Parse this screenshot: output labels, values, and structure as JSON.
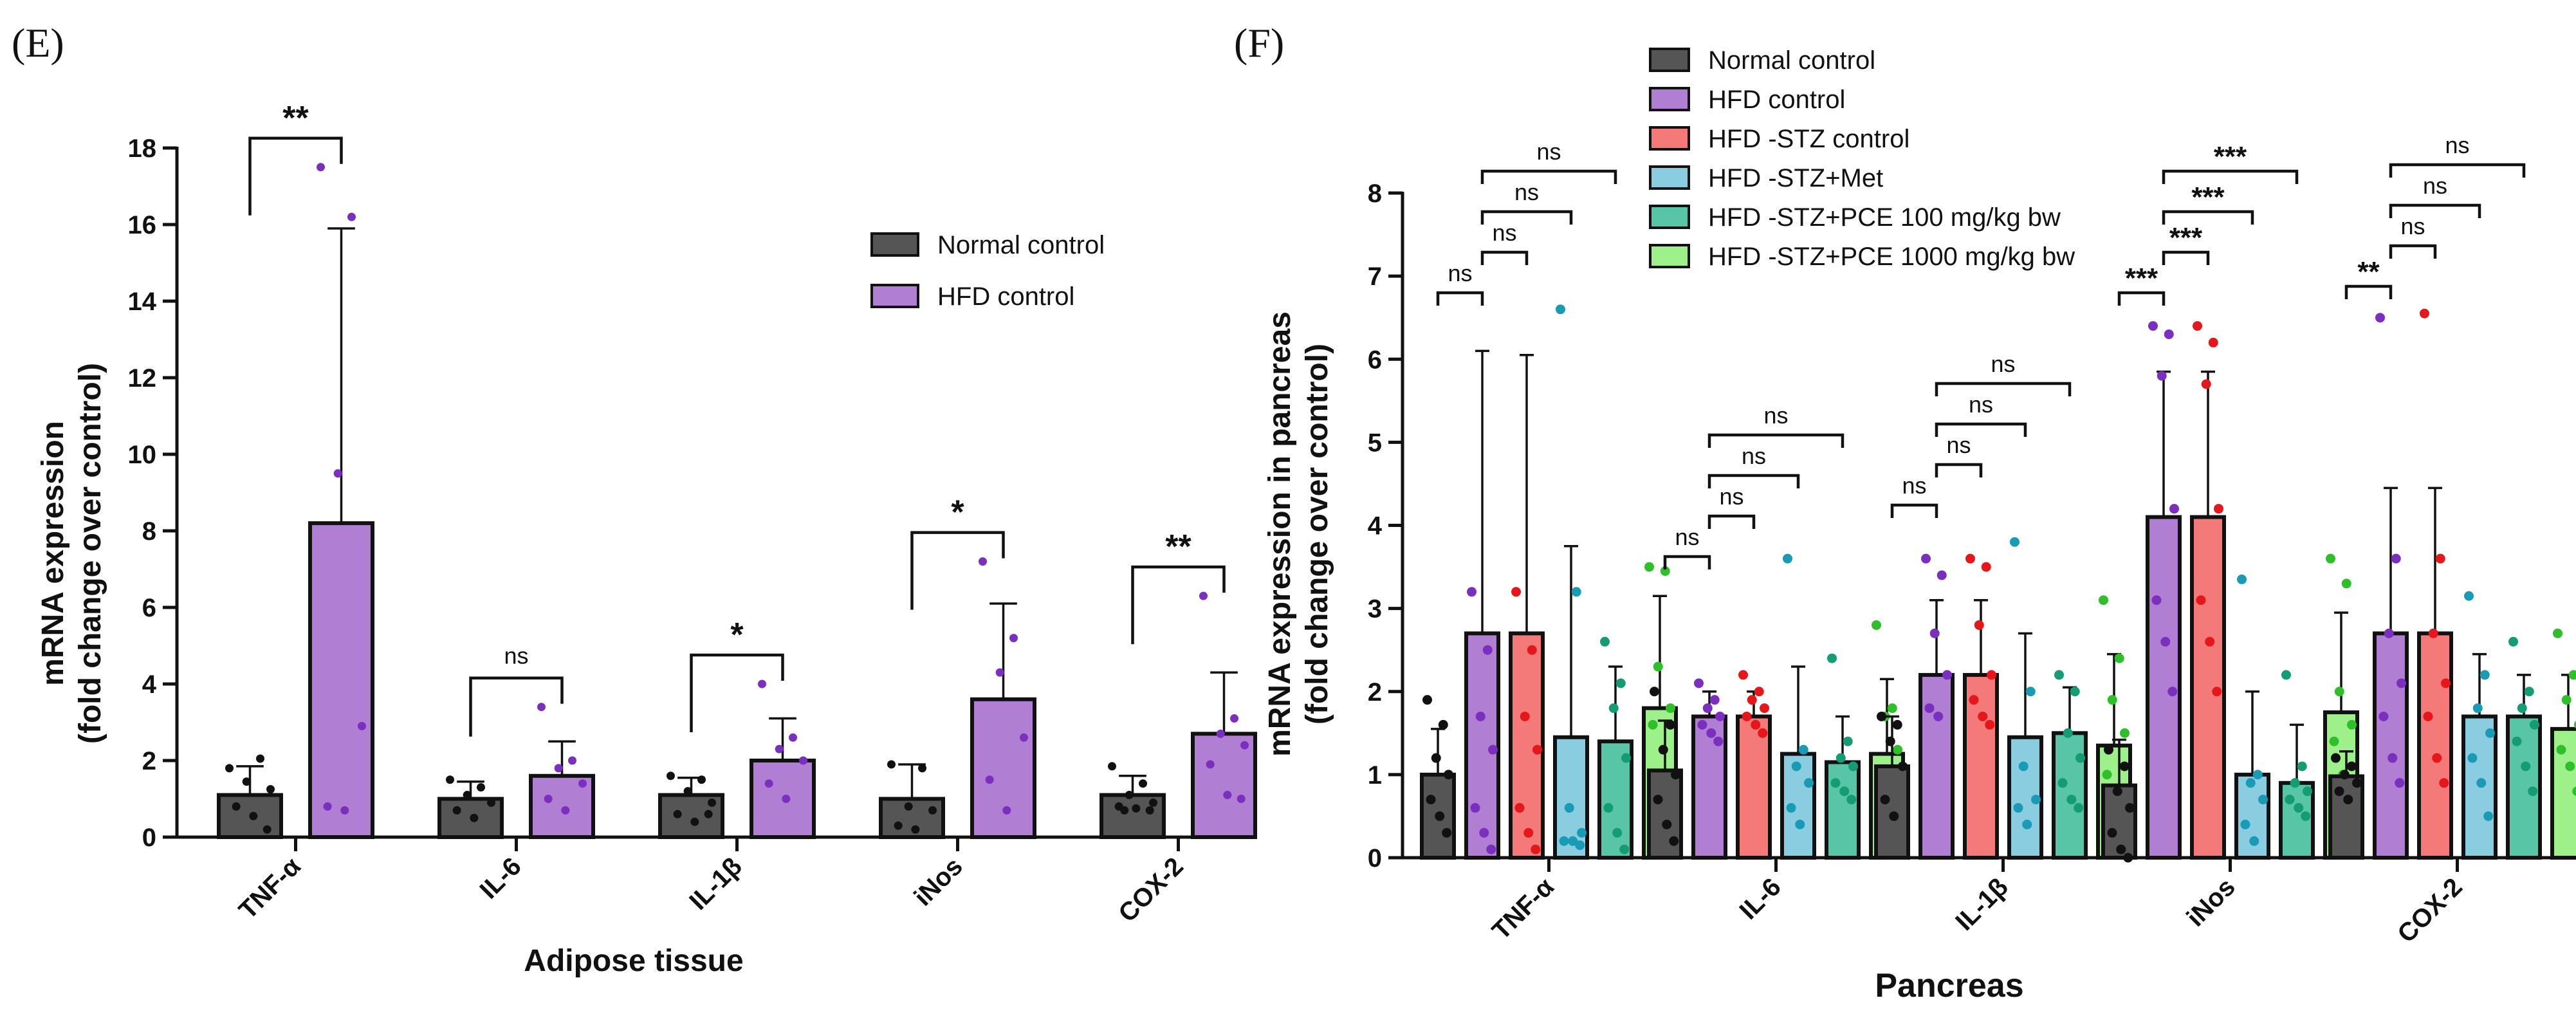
{
  "chart_data": [
    {
      "id": "E",
      "panel_label": "(E)",
      "type": "bar",
      "title": "",
      "xlabel": "Adipose tissue",
      "ylabel": [
        "mRNA expression",
        "(fold change over control)"
      ],
      "ylim": [
        0,
        18
      ],
      "yticks": [
        0,
        2,
        4,
        6,
        8,
        10,
        12,
        14,
        16,
        18
      ],
      "legend_position": "top-right",
      "categories": [
        "TNF-α",
        "IL-6",
        "IL-1β",
        "iNos",
        "COX-2"
      ],
      "series": [
        {
          "name": "Normal control",
          "color": "#555555",
          "values": [
            1.1,
            1.0,
            1.1,
            1.0,
            1.1
          ],
          "errors": [
            0.75,
            0.45,
            0.45,
            0.9,
            0.5
          ],
          "points": [
            [
              1.8,
              2.05,
              1.45,
              1.25,
              0.8,
              0.55,
              0.2
            ],
            [
              1.5,
              1.3,
              1.1,
              0.9,
              0.7,
              0.5
            ],
            [
              1.6,
              1.5,
              1.2,
              0.9,
              0.6,
              0.4,
              0.6
            ],
            [
              1.9,
              1.8,
              0.8,
              0.7,
              0.3,
              0.2
            ],
            [
              1.85,
              1.4,
              1.1,
              0.9,
              0.8,
              0.75,
              0.7,
              0.7
            ]
          ]
        },
        {
          "name": "HFD control",
          "color": "#b07fd4",
          "values": [
            8.2,
            1.6,
            2.0,
            3.6,
            2.7
          ],
          "errors": [
            7.7,
            0.9,
            1.1,
            2.5,
            1.6
          ],
          "points": [
            [
              17.5,
              16.2,
              9.5,
              2.9,
              0.8,
              0.7
            ],
            [
              3.4,
              2.0,
              1.8,
              1.4,
              1.0,
              0.7
            ],
            [
              4.0,
              2.6,
              2.3,
              2.0,
              1.4,
              1.0
            ],
            [
              7.2,
              5.2,
              4.3,
              2.6,
              1.5,
              0.7
            ],
            [
              6.3,
              3.1,
              2.7,
              2.4,
              1.9,
              1.1,
              1.0
            ]
          ]
        }
      ],
      "significance": [
        {
          "category": "TNF-α",
          "label": "**"
        },
        {
          "category": "IL-6",
          "label": "ns"
        },
        {
          "category": "IL-1β",
          "label": "*"
        },
        {
          "category": "iNos",
          "label": "*"
        },
        {
          "category": "COX-2",
          "label": "**"
        }
      ]
    },
    {
      "id": "F",
      "panel_label": "(F)",
      "type": "bar",
      "title": "",
      "xlabel": "Pancreas",
      "ylabel": [
        "mRNA expression in pancreas",
        "(fold change over control)"
      ],
      "ylim": [
        0,
        8
      ],
      "yticks": [
        0,
        1,
        2,
        3,
        4,
        5,
        6,
        7,
        8
      ],
      "legend_position": "top-center",
      "categories": [
        "TNF-α",
        "IL-6",
        "IL-1β",
        "iNos",
        "COX-2"
      ],
      "series": [
        {
          "name": "Normal control",
          "color": "#555555",
          "dot": "#111111",
          "values": [
            1.0,
            1.05,
            1.1,
            0.87,
            0.98
          ],
          "errors": [
            0.55,
            0.6,
            0.6,
            0.55,
            0.3
          ],
          "points": [
            [
              1.9,
              1.6,
              1.2,
              1.0,
              0.7,
              0.5,
              0.3
            ],
            [
              2.0,
              1.6,
              1.3,
              1.0,
              0.7,
              0.4,
              0.2
            ],
            [
              1.7,
              1.6,
              1.4,
              1.1,
              0.7,
              0.5
            ],
            [
              1.3,
              1.1,
              0.8,
              0.6,
              0.3,
              0.1,
              0.0
            ],
            [
              1.2,
              1.1,
              1.0,
              0.9,
              0.8,
              0.7
            ]
          ]
        },
        {
          "name": "HFD control",
          "color": "#b07fd4",
          "dot": "#7b2fbf",
          "values": [
            2.7,
            1.7,
            2.2,
            4.1,
            2.7
          ],
          "errors": [
            3.4,
            0.3,
            0.9,
            1.75,
            1.75
          ],
          "points": [
            [
              3.2,
              2.5,
              1.7,
              1.3,
              0.6,
              0.3,
              0.1
            ],
            [
              2.1,
              1.9,
              1.8,
              1.7,
              1.6,
              1.5,
              1.4
            ],
            [
              3.6,
              3.4,
              2.7,
              2.2,
              1.8,
              1.7
            ],
            [
              6.4,
              6.3,
              5.8,
              4.2,
              3.1,
              2.6,
              2.0
            ],
            [
              6.5,
              3.6,
              2.7,
              2.1,
              1.7,
              1.2,
              0.9
            ]
          ]
        },
        {
          "name": "HFD -STZ control",
          "color": "#f47a7a",
          "dot": "#e5171a",
          "values": [
            2.7,
            1.7,
            2.2,
            4.1,
            2.7
          ],
          "errors": [
            3.35,
            0.3,
            0.9,
            1.75,
            1.75
          ],
          "points": [
            [
              3.2,
              2.5,
              1.7,
              1.3,
              0.6,
              0.3,
              0.1
            ],
            [
              2.2,
              2.0,
              1.9,
              1.8,
              1.7,
              1.6,
              1.5
            ],
            [
              3.6,
              3.5,
              2.8,
              2.2,
              1.9,
              1.7,
              1.6
            ],
            [
              6.4,
              6.2,
              5.7,
              4.2,
              3.1,
              2.6,
              2.0
            ],
            [
              6.55,
              3.6,
              2.7,
              2.1,
              1.7,
              1.2,
              0.9
            ]
          ]
        },
        {
          "name": "HFD -STZ+Met",
          "color": "#8bcde0",
          "dot": "#1a9bb5",
          "values": [
            1.45,
            1.25,
            1.45,
            1.0,
            1.7
          ],
          "errors": [
            2.3,
            1.05,
            1.25,
            1.0,
            0.75
          ],
          "points": [
            [
              6.6,
              3.2,
              0.6,
              0.3,
              0.2,
              0.2,
              0.15
            ],
            [
              3.6,
              1.3,
              1.1,
              0.9,
              0.6,
              0.4
            ],
            [
              3.8,
              2.0,
              1.1,
              0.7,
              0.6,
              0.4
            ],
            [
              3.35,
              1.0,
              0.9,
              0.7,
              0.4,
              0.2
            ],
            [
              3.15,
              2.2,
              1.8,
              1.5,
              1.2,
              0.9,
              0.5
            ]
          ]
        },
        {
          "name": "HFD -STZ+PCE 100 mg/kg bw",
          "color": "#58c6a6",
          "dot": "#149c74",
          "values": [
            1.4,
            1.15,
            1.5,
            0.9,
            1.7
          ],
          "errors": [
            0.9,
            0.55,
            0.55,
            0.7,
            0.5
          ],
          "points": [
            [
              2.6,
              2.1,
              1.8,
              1.2,
              0.6,
              0.3,
              0.1
            ],
            [
              2.4,
              1.4,
              1.2,
              1.1,
              0.9,
              0.8,
              0.7
            ],
            [
              2.2,
              2.0,
              1.5,
              1.2,
              0.9,
              0.7,
              0.6
            ],
            [
              2.2,
              1.1,
              0.9,
              0.8,
              0.7,
              0.6,
              0.5
            ],
            [
              2.6,
              2.0,
              1.8,
              1.6,
              1.4,
              1.1,
              0.8
            ]
          ]
        },
        {
          "name": "HFD -STZ+PCE 1000 mg/kg bw",
          "color": "#9ef08a",
          "dot": "#2fbf2a",
          "values": [
            1.8,
            1.25,
            1.35,
            1.75,
            1.55
          ],
          "errors": [
            1.35,
            0.9,
            1.1,
            1.2,
            0.65
          ],
          "points": [
            [
              3.5,
              3.45,
              2.3,
              1.8,
              1.6,
              0.8,
              0.4
            ],
            [
              2.8,
              1.8,
              1.7,
              1.3,
              1.0,
              0.6,
              0.1
            ],
            [
              3.1,
              2.4,
              1.9,
              1.5,
              1.0,
              0.7,
              0.3
            ],
            [
              3.6,
              3.3,
              2.0,
              1.6,
              1.4,
              1.0,
              0.3
            ],
            [
              2.7,
              2.2,
              1.9,
              1.6,
              1.3,
              1.1,
              0.8
            ]
          ]
        }
      ],
      "significance": [
        {
          "category": "TNF-α",
          "from": 0,
          "to": 1,
          "label": "ns"
        },
        {
          "category": "TNF-α",
          "from": 1,
          "to": 2,
          "label": "ns"
        },
        {
          "category": "TNF-α",
          "from": 1,
          "to": 3,
          "label": "ns"
        },
        {
          "category": "TNF-α",
          "from": 1,
          "to": 4,
          "label": "ns"
        },
        {
          "category": "IL-6",
          "from": 0,
          "to": 1,
          "label": "ns"
        },
        {
          "category": "IL-6",
          "from": 1,
          "to": 2,
          "label": "ns"
        },
        {
          "category": "IL-6",
          "from": 1,
          "to": 3,
          "label": "ns"
        },
        {
          "category": "IL-6",
          "from": 1,
          "to": 4,
          "label": "ns"
        },
        {
          "category": "IL-1β",
          "from": 0,
          "to": 1,
          "label": "ns"
        },
        {
          "category": "IL-1β",
          "from": 1,
          "to": 2,
          "label": "ns"
        },
        {
          "category": "IL-1β",
          "from": 1,
          "to": 3,
          "label": "ns"
        },
        {
          "category": "IL-1β",
          "from": 1,
          "to": 4,
          "label": "ns"
        },
        {
          "category": "iNos",
          "from": 0,
          "to": 1,
          "label": "***"
        },
        {
          "category": "iNos",
          "from": 1,
          "to": 2,
          "label": "***"
        },
        {
          "category": "iNos",
          "from": 1,
          "to": 3,
          "label": "***"
        },
        {
          "category": "iNos",
          "from": 1,
          "to": 4,
          "label": "***"
        },
        {
          "category": "COX-2",
          "from": 0,
          "to": 1,
          "label": "**"
        },
        {
          "category": "COX-2",
          "from": 1,
          "to": 2,
          "label": "ns"
        },
        {
          "category": "COX-2",
          "from": 1,
          "to": 3,
          "label": "ns"
        },
        {
          "category": "COX-2",
          "from": 1,
          "to": 4,
          "label": "ns"
        }
      ]
    }
  ]
}
